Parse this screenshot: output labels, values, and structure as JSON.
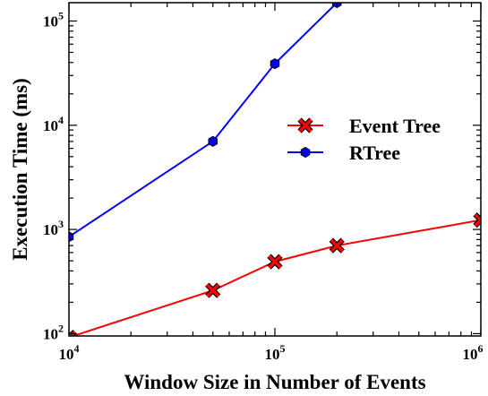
{
  "chart_data": {
    "type": "line",
    "title": "",
    "xlabel": "Window Size in Number of Events",
    "ylabel": "Execution Time (ms)",
    "xscale": "log",
    "yscale": "log",
    "xlim": [
      10000,
      1000000
    ],
    "ylim": [
      95,
      150000
    ],
    "grid": false,
    "legend_position": "center-right",
    "x_ticks": [
      {
        "value": 10000,
        "base": "10",
        "exp": "4"
      },
      {
        "value": 100000,
        "base": "10",
        "exp": "5"
      },
      {
        "value": 1000000,
        "base": "10",
        "exp": "6"
      }
    ],
    "y_ticks": [
      {
        "value": 100,
        "base": "10",
        "exp": "2"
      },
      {
        "value": 1000,
        "base": "10",
        "exp": "3"
      },
      {
        "value": 10000,
        "base": "10",
        "exp": "4"
      },
      {
        "value": 100000,
        "base": "10",
        "exp": "5"
      }
    ],
    "series": [
      {
        "name": "Event Tree",
        "color": "#ff0000",
        "marker": "x",
        "x": [
          10000,
          50000,
          100000,
          200000,
          1000000
        ],
        "y": [
          92,
          260,
          490,
          700,
          1230
        ]
      },
      {
        "name": "RTree",
        "color": "#0000ff",
        "marker": "hexagon",
        "x": [
          10000,
          50000,
          100000,
          200000
        ],
        "y": [
          850,
          7000,
          39000,
          150000
        ]
      }
    ]
  }
}
